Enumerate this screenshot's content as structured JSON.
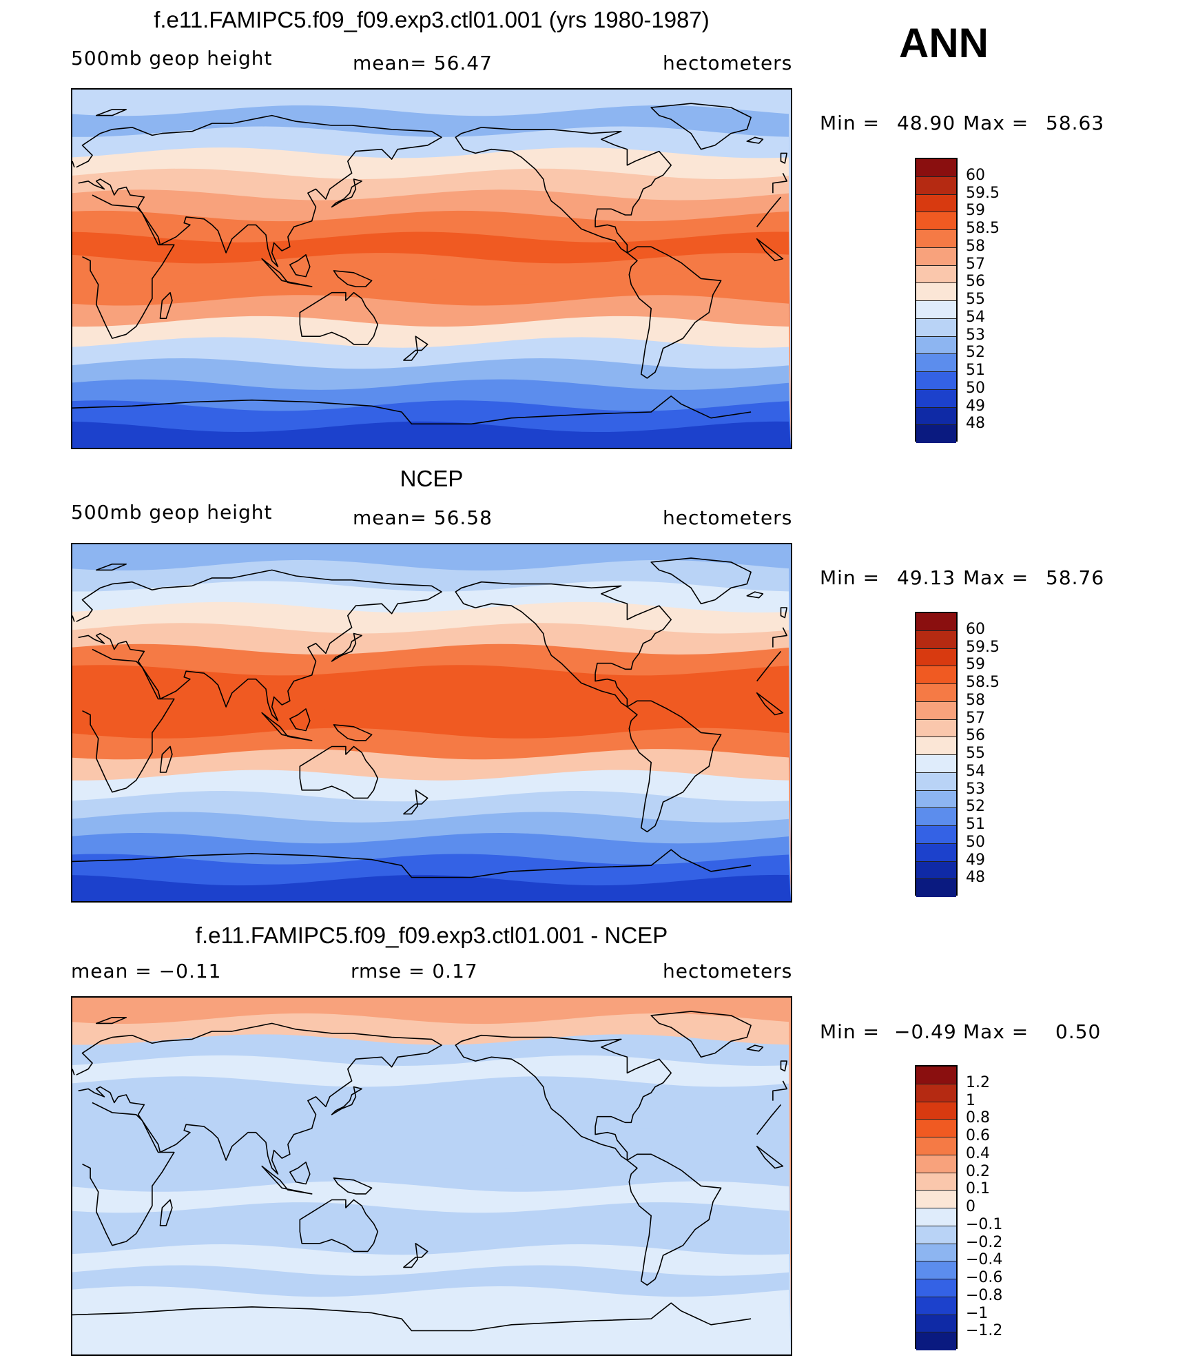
{
  "figure": {
    "season": "ANN",
    "units": "hectometers"
  },
  "panels": [
    {
      "title": "f.e11.FAMIPC5.f09_f09.exp3.ctl01.001 (yrs 1980-1987)",
      "variable": "500mb geop height",
      "stat_left": "",
      "stat_center": "mean=   56.47",
      "units": "hectometers",
      "min_label": "Min =",
      "min_value": "48.90",
      "max_label": "Max =",
      "max_value": "58.63",
      "colorbar_labels": [
        "60",
        "59.5",
        "59",
        "58.5",
        "58",
        "57",
        "56",
        "55",
        "54",
        "53",
        "52",
        "51",
        "50",
        "49",
        "48"
      ],
      "colorbar_colors": [
        "#8a0f0f",
        "#b52a12",
        "#d83a10",
        "#f05a22",
        "#f57a45",
        "#f8a27c",
        "#fac7ac",
        "#fbe6d6",
        "#dfecfb",
        "#b9d3f6",
        "#8db5f1",
        "#5c8ded",
        "#3462e5",
        "#1c41cc",
        "#0f2aa6",
        "#0a1a80"
      ],
      "map_bands": [
        "#c4daf9",
        "#8db5f1",
        "#c4daf9",
        "#fbe6d6",
        "#fac7ac",
        "#f8a27c",
        "#f57a45",
        "#f05a22",
        "#f57a45",
        "#f57a45",
        "#f8a27c",
        "#fbe6d6",
        "#c4daf9",
        "#8db5f1",
        "#5c8ded",
        "#3462e5",
        "#1c41cc"
      ]
    },
    {
      "title": "NCEP",
      "variable": "500mb geop height",
      "stat_left": "",
      "stat_center": "mean=   56.58",
      "units": "hectometers",
      "min_label": "Min =",
      "min_value": "49.13",
      "max_label": "Max =",
      "max_value": "58.76",
      "colorbar_labels": [
        "60",
        "59.5",
        "59",
        "58.5",
        "58",
        "57",
        "56",
        "55",
        "54",
        "53",
        "52",
        "51",
        "50",
        "49",
        "48"
      ],
      "colorbar_colors": [
        "#8a0f0f",
        "#b52a12",
        "#d83a10",
        "#f05a22",
        "#f57a45",
        "#f8a27c",
        "#fac7ac",
        "#fbe6d6",
        "#dfecfb",
        "#b9d3f6",
        "#8db5f1",
        "#5c8ded",
        "#3462e5",
        "#1c41cc",
        "#0f2aa6",
        "#0a1a80"
      ],
      "map_bands": [
        "#8db5f1",
        "#b9d3f6",
        "#dfecfb",
        "#fbe6d6",
        "#fac7ac",
        "#f57a45",
        "#f05a22",
        "#f05a22",
        "#f05a22",
        "#f57a45",
        "#fac7ac",
        "#dfecfb",
        "#b9d3f6",
        "#8db5f1",
        "#5c8ded",
        "#3462e5",
        "#1c41cc"
      ]
    },
    {
      "title": "f.e11.FAMIPC5.f09_f09.exp3.ctl01.001 - NCEP",
      "variable": "",
      "stat_left": "mean =   −0.11",
      "stat_center": "rmse =    0.17",
      "units": "hectometers",
      "min_label": "Min =",
      "min_value": "−0.49",
      "max_label": "Max =",
      "max_value": "0.50",
      "colorbar_labels": [
        "1.2",
        "1",
        "0.8",
        "0.6",
        "0.4",
        "0.2",
        "0.1",
        "0",
        "−0.1",
        "−0.2",
        "−0.4",
        "−0.6",
        "−0.8",
        "−1",
        "−1.2"
      ],
      "colorbar_colors": [
        "#8a0f0f",
        "#b52a12",
        "#d83a10",
        "#f05a22",
        "#f57a45",
        "#f8a27c",
        "#fac7ac",
        "#fbe6d6",
        "#dfecfb",
        "#b9d3f6",
        "#8db5f1",
        "#5c8ded",
        "#3462e5",
        "#1c41cc",
        "#0f2aa6",
        "#0a1a80"
      ],
      "map_bands": [
        "#f8a27c",
        "#fac7ac",
        "#b9d3f6",
        "#dfecfb",
        "#b9d3f6",
        "#b9d3f6",
        "#b9d3f6",
        "#b9d3f6",
        "#b9d3f6",
        "#dfecfb",
        "#b9d3f6",
        "#b9d3f6",
        "#dfecfb",
        "#b9d3f6",
        "#dfecfb",
        "#dfecfb",
        "#dfecfb"
      ]
    }
  ]
}
